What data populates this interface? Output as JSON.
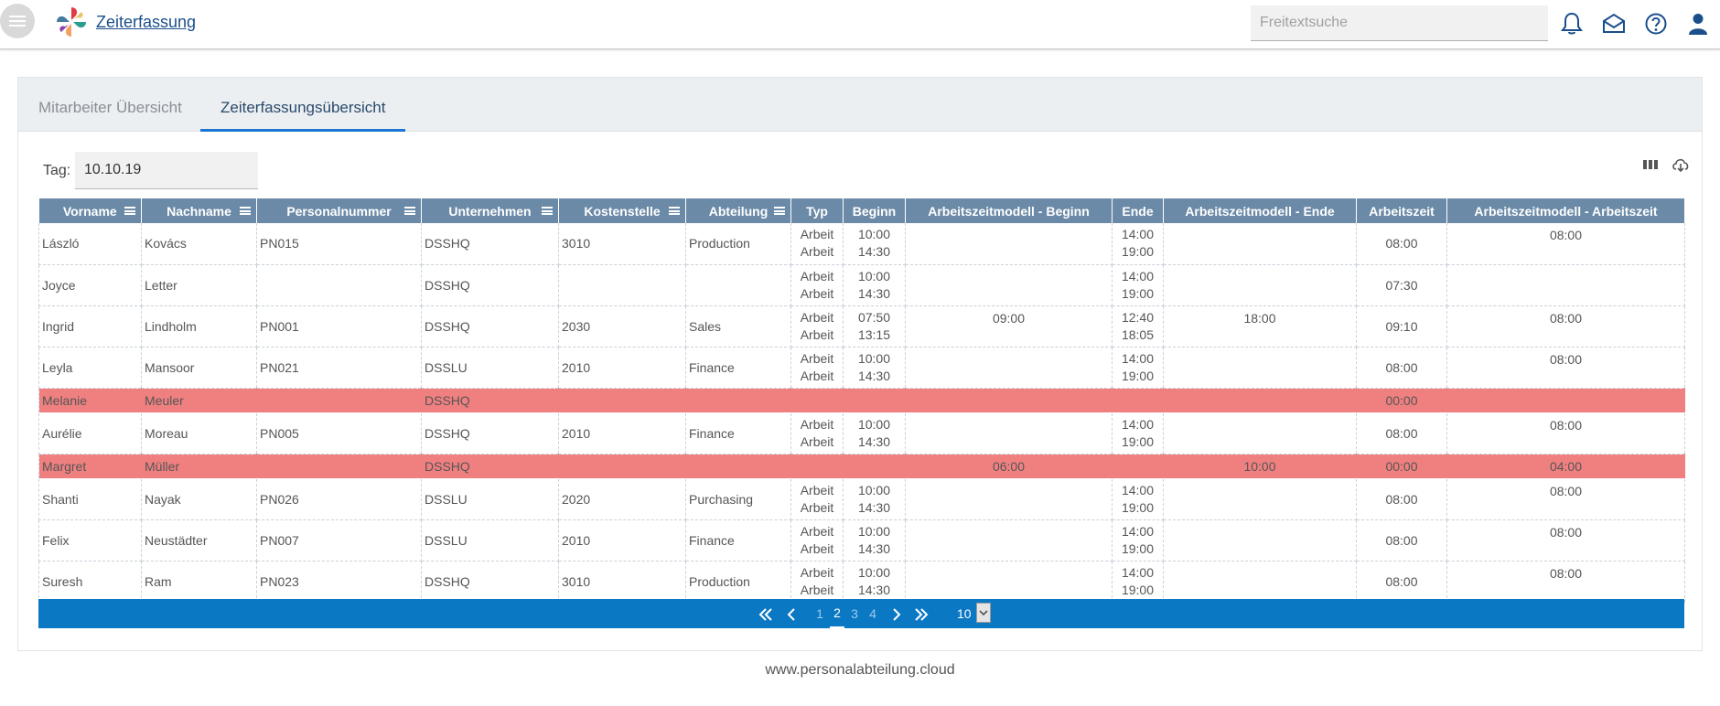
{
  "header": {
    "app_title": "Zeiterfassung",
    "search_placeholder": "Freitextsuche"
  },
  "tabs": [
    {
      "label": "Mitarbeiter Übersicht"
    },
    {
      "label": "Zeiterfassungsübersicht"
    }
  ],
  "filter": {
    "tag_label": "Tag:",
    "tag_value": "10.10.19"
  },
  "table": {
    "columns": [
      "Vorname",
      "Nachname",
      "Personalnummer",
      "Unternehmen",
      "Kostenstelle",
      "Abteilung",
      "Typ",
      "Beginn",
      "Arbeitszeitmodell - Beginn",
      "Ende",
      "Arbeitszeitmodell - Ende",
      "Arbeitszeit",
      "Arbeitszeitmodell - Arbeitszeit"
    ],
    "rows": [
      {
        "vorname": "László",
        "nachname": "Kovács",
        "pn": "PN015",
        "unternehmen": "DSSHQ",
        "kst": "3010",
        "abteilung": "Production",
        "typ": [
          "Arbeit",
          "Arbeit"
        ],
        "beginn": [
          "10:00",
          "14:30"
        ],
        "azm_beginn": "",
        "ende": [
          "14:00",
          "19:00"
        ],
        "azm_ende": "",
        "az": "08:00",
        "azm_az": "08:00"
      },
      {
        "vorname": "Joyce",
        "nachname": "Letter",
        "pn": "",
        "unternehmen": "DSSHQ",
        "kst": "",
        "abteilung": "",
        "typ": [
          "Arbeit",
          "Arbeit"
        ],
        "beginn": [
          "10:00",
          "14:30"
        ],
        "azm_beginn": "",
        "ende": [
          "14:00",
          "19:00"
        ],
        "azm_ende": "",
        "az": "07:30",
        "azm_az": ""
      },
      {
        "vorname": "Ingrid",
        "nachname": "Lindholm",
        "pn": "PN001",
        "unternehmen": "DSSHQ",
        "kst": "2030",
        "abteilung": "Sales",
        "typ": [
          "Arbeit",
          "Arbeit"
        ],
        "beginn": [
          "07:50",
          "13:15"
        ],
        "azm_beginn": "09:00",
        "ende": [
          "12:40",
          "18:05"
        ],
        "azm_ende": "18:00",
        "az": "09:10",
        "azm_az": "08:00"
      },
      {
        "vorname": "Leyla",
        "nachname": "Mansoor",
        "pn": "PN021",
        "unternehmen": "DSSLU",
        "kst": "2010",
        "abteilung": "Finance",
        "typ": [
          "Arbeit",
          "Arbeit"
        ],
        "beginn": [
          "10:00",
          "14:30"
        ],
        "azm_beginn": "",
        "ende": [
          "14:00",
          "19:00"
        ],
        "azm_ende": "",
        "az": "08:00",
        "azm_az": "08:00"
      },
      {
        "vorname": "Melanie",
        "nachname": "Meuler",
        "pn": "",
        "unternehmen": "DSSHQ",
        "kst": "",
        "abteilung": "",
        "typ": [],
        "beginn": [],
        "azm_beginn": "",
        "ende": [],
        "azm_ende": "",
        "az": "00:00",
        "azm_az": "",
        "highlight": true
      },
      {
        "vorname": "Aurélie",
        "nachname": "Moreau",
        "pn": "PN005",
        "unternehmen": "DSSHQ",
        "kst": "2010",
        "abteilung": "Finance",
        "typ": [
          "Arbeit",
          "Arbeit"
        ],
        "beginn": [
          "10:00",
          "14:30"
        ],
        "azm_beginn": "",
        "ende": [
          "14:00",
          "19:00"
        ],
        "azm_ende": "",
        "az": "08:00",
        "azm_az": "08:00"
      },
      {
        "vorname": "Margret",
        "nachname": "Müller",
        "pn": "",
        "unternehmen": "DSSHQ",
        "kst": "",
        "abteilung": "",
        "typ": [],
        "beginn": [],
        "azm_beginn": "06:00",
        "ende": [],
        "azm_ende": "10:00",
        "az": "00:00",
        "azm_az": "04:00",
        "highlight": true
      },
      {
        "vorname": "Shanti",
        "nachname": "Nayak",
        "pn": "PN026",
        "unternehmen": "DSSLU",
        "kst": "2020",
        "abteilung": "Purchasing",
        "typ": [
          "Arbeit",
          "Arbeit"
        ],
        "beginn": [
          "10:00",
          "14:30"
        ],
        "azm_beginn": "",
        "ende": [
          "14:00",
          "19:00"
        ],
        "azm_ende": "",
        "az": "08:00",
        "azm_az": "08:00"
      },
      {
        "vorname": "Felix",
        "nachname": "Neustädter",
        "pn": "PN007",
        "unternehmen": "DSSLU",
        "kst": "2010",
        "abteilung": "Finance",
        "typ": [
          "Arbeit",
          "Arbeit"
        ],
        "beginn": [
          "10:00",
          "14:30"
        ],
        "azm_beginn": "",
        "ende": [
          "14:00",
          "19:00"
        ],
        "azm_ende": "",
        "az": "08:00",
        "azm_az": "08:00"
      },
      {
        "vorname": "Suresh",
        "nachname": "Ram",
        "pn": "PN023",
        "unternehmen": "DSSHQ",
        "kst": "3010",
        "abteilung": "Production",
        "typ": [
          "Arbeit",
          "Arbeit"
        ],
        "beginn": [
          "10:00",
          "14:30"
        ],
        "azm_beginn": "",
        "ende": [
          "14:00",
          "19:00"
        ],
        "azm_ende": "",
        "az": "08:00",
        "azm_az": "08:00"
      }
    ]
  },
  "pager": {
    "pages": [
      "1",
      "2",
      "3",
      "4"
    ],
    "active_page": "2",
    "page_size": "10"
  },
  "footer": {
    "text": "www.personalabteilung.cloud"
  },
  "colors": {
    "header_bg": "#6b8aa7",
    "highlight_row": "#f08080",
    "pager_bg": "#0b78c4",
    "accent": "#1976d2"
  },
  "icons": [
    "menu-icon",
    "logo-icon",
    "bell-icon",
    "mail-icon",
    "help-icon",
    "user-icon",
    "columns-icon",
    "cloud-download-icon",
    "first-page-icon",
    "prev-page-icon",
    "next-page-icon",
    "last-page-icon",
    "column-menu-icon"
  ]
}
